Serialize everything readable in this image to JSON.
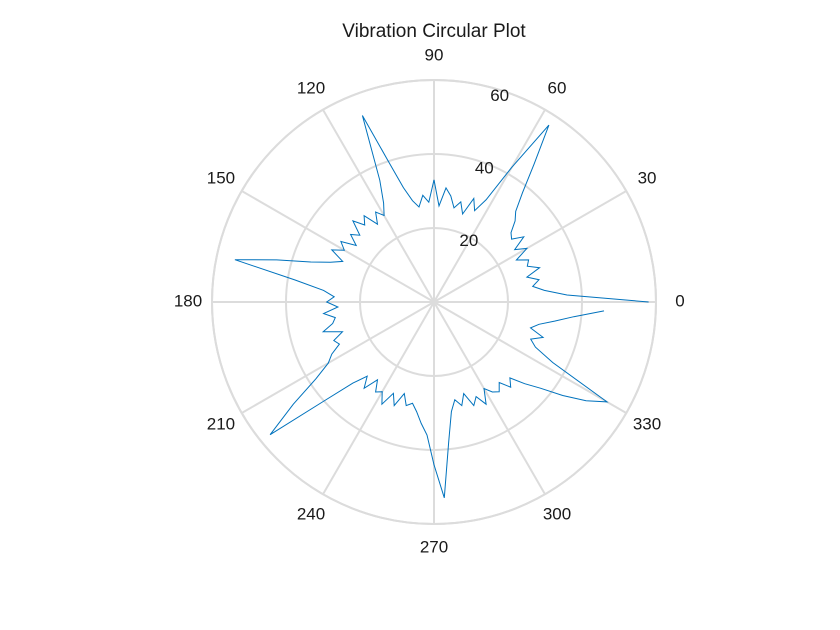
{
  "chart_data": {
    "type": "polar",
    "title": "Vibration Circular Plot",
    "theta": [
      0,
      3,
      6,
      9,
      12,
      15,
      18,
      21,
      24,
      27,
      30,
      33,
      36,
      39,
      42,
      45,
      48,
      51,
      54,
      57,
      60,
      63,
      66,
      69,
      72,
      75,
      78,
      81,
      84,
      87,
      90,
      93,
      96,
      99,
      102,
      105,
      108,
      111,
      114,
      117,
      120,
      123,
      126,
      129,
      132,
      135,
      138,
      141,
      144,
      147,
      150,
      153,
      156,
      159,
      162,
      165,
      168,
      171,
      174,
      177,
      180,
      183,
      186,
      189,
      192,
      195,
      198,
      201,
      204,
      207,
      210,
      213,
      216,
      219,
      222,
      225,
      228,
      231,
      234,
      237,
      240,
      243,
      246,
      249,
      252,
      255,
      258,
      261,
      264,
      267,
      270,
      273,
      276,
      279,
      282,
      285,
      288,
      291,
      294,
      297,
      300,
      303,
      306,
      309,
      312,
      315,
      318,
      321,
      324,
      327,
      330,
      333,
      336,
      339,
      342,
      345,
      348,
      351,
      354,
      357
    ],
    "values": [
      58,
      36,
      30,
      27,
      29,
      26,
      30,
      27,
      28,
      25,
      29,
      26,
      30,
      27,
      28,
      31,
      33,
      38,
      46,
      57,
      42,
      31,
      27,
      30,
      25,
      28,
      26,
      29,
      31,
      26,
      33,
      27,
      29,
      26,
      28,
      32,
      40,
      54,
      36,
      30,
      27,
      29,
      26,
      30,
      28,
      31,
      27,
      29,
      26,
      30,
      28,
      31,
      27,
      30,
      35,
      44,
      55,
      38,
      30,
      27,
      29,
      26,
      30,
      27,
      28,
      31,
      26,
      29,
      28,
      31,
      33,
      38,
      47,
      57,
      40,
      31,
      27,
      30,
      26,
      29,
      28,
      31,
      27,
      30,
      26,
      29,
      28,
      30,
      33,
      36,
      44,
      53,
      38,
      30,
      27,
      29,
      26,
      30,
      28,
      31,
      27,
      29,
      30,
      28,
      31,
      29,
      33,
      37,
      43,
      49,
      54,
      36,
      30,
      28,
      31,
      27,
      29,
      33,
      38,
      46
    ],
    "color": "#0072bd",
    "rlim": [
      0,
      60
    ],
    "rticks": [
      20,
      40,
      60
    ],
    "thetaticks": [
      0,
      30,
      60,
      90,
      120,
      150,
      180,
      210,
      240,
      270,
      300,
      330
    ],
    "grid": true
  }
}
